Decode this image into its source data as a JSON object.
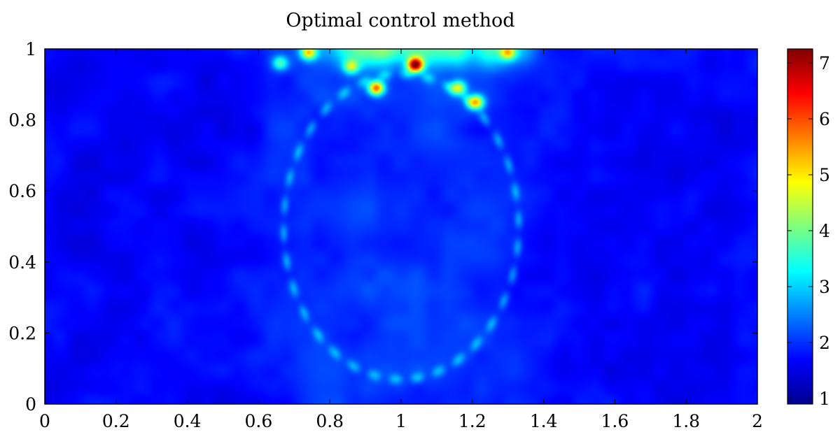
{
  "chart_data": {
    "type": "heatmap",
    "title": "Optimal control method",
    "xlabel": "",
    "ylabel": "",
    "xlim": [
      0,
      2
    ],
    "ylim": [
      0,
      1
    ],
    "xticks": [
      "0",
      "0.2",
      "0.4",
      "0.6",
      "0.8",
      "1",
      "1.2",
      "1.4",
      "1.6",
      "1.8",
      "2"
    ],
    "yticks": [
      "0",
      "0.2",
      "0.4",
      "0.6",
      "0.8",
      "1"
    ],
    "colorbar": {
      "colormap": "jet",
      "range": [
        0.9,
        7.25
      ],
      "ticks": [
        "1",
        "2",
        "3",
        "4",
        "5",
        "6",
        "7"
      ]
    },
    "field_description": {
      "background_level": 1.7,
      "central_band_level": 2.0,
      "ellipse_ring": {
        "cx": 1.0,
        "cy": 0.5,
        "rx": 0.33,
        "ry": 0.43,
        "level": 3.0
      },
      "hotspots": [
        {
          "x": 1.04,
          "y": 0.955,
          "value": 7.1
        },
        {
          "x": 0.93,
          "y": 0.89,
          "value": 6.0
        },
        {
          "x": 1.21,
          "y": 0.85,
          "value": 5.5
        },
        {
          "x": 0.74,
          "y": 0.99,
          "value": 5.0
        },
        {
          "x": 1.16,
          "y": 0.89,
          "value": 4.8
        },
        {
          "x": 1.3,
          "y": 0.99,
          "value": 4.5
        },
        {
          "x": 0.86,
          "y": 0.95,
          "value": 4.3
        },
        {
          "x": 0.66,
          "y": 0.96,
          "value": 4.0
        }
      ]
    }
  }
}
